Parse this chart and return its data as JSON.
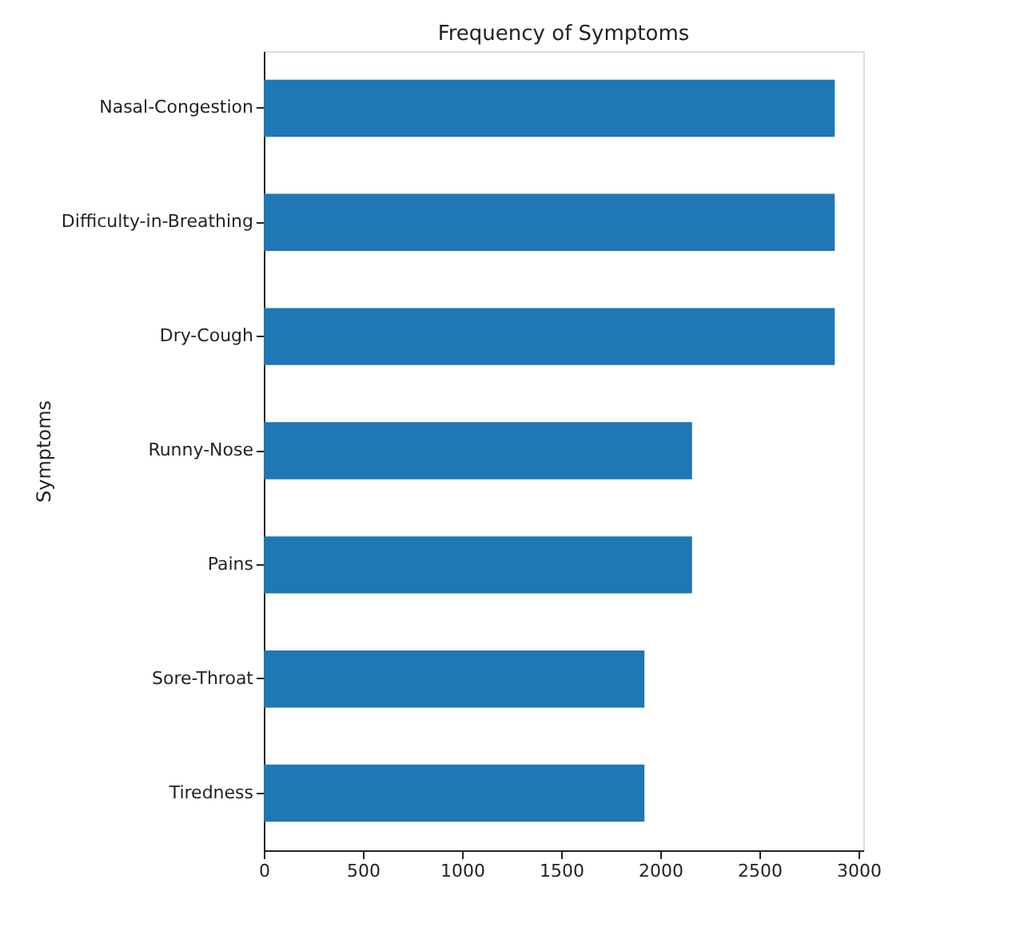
{
  "chart_data": {
    "type": "bar",
    "orientation": "horizontal",
    "title": "Frequency of Symptoms",
    "ylabel": "Symptoms",
    "categories": [
      "Nasal-Congestion",
      "Difficulty-in-Breathing",
      "Dry-Cough",
      "Runny-Nose",
      "Pains",
      "Sore-Throat",
      "Tiredness"
    ],
    "values": [
      2880,
      2880,
      2880,
      2160,
      2160,
      1920,
      1920
    ],
    "color": "#1f77b4",
    "xlim": [
      0,
      3024
    ],
    "xticks": [
      0,
      500,
      1000,
      1500,
      2000,
      2500,
      3000
    ],
    "grid": false
  }
}
